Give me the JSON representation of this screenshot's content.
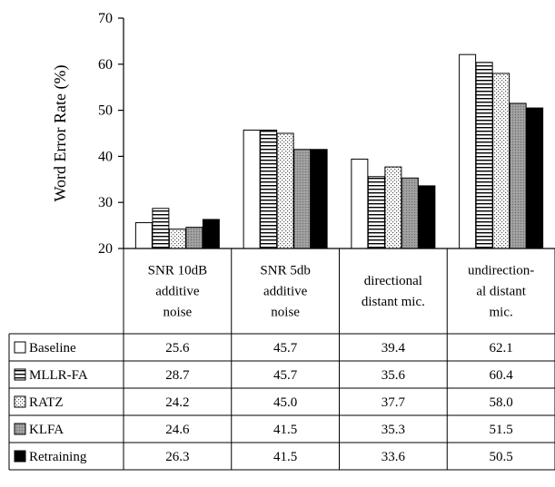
{
  "chart_data": {
    "type": "bar",
    "ylabel": "Word Error Rate (%)",
    "ylim": [
      20,
      70
    ],
    "yticks": [
      20,
      30,
      40,
      50,
      60,
      70
    ],
    "grid": false,
    "legend_placement": "left-table",
    "categories": [
      [
        "SNR 10dB",
        "additive",
        "noise"
      ],
      [
        "SNR 5db",
        "additive",
        "noise"
      ],
      [
        "directional",
        "distant mic."
      ],
      [
        "undirection-",
        "al distant",
        "mic."
      ]
    ],
    "series": [
      {
        "name": "Baseline",
        "pattern": "white",
        "values": [
          25.6,
          45.7,
          39.4,
          62.1
        ],
        "labels": [
          "25.6",
          "45.7",
          "39.4",
          "62.1"
        ]
      },
      {
        "name": "MLLR-FA",
        "pattern": "hstripe",
        "values": [
          28.7,
          45.7,
          35.6,
          60.4
        ],
        "labels": [
          "28.7",
          "45.7",
          "35.6",
          "60.4"
        ]
      },
      {
        "name": "RATZ",
        "pattern": "dots",
        "values": [
          24.2,
          45.0,
          37.7,
          58.0
        ],
        "labels": [
          "24.2",
          "45.0",
          "37.7",
          "58.0"
        ]
      },
      {
        "name": "KLFA",
        "pattern": "gray",
        "values": [
          24.6,
          41.5,
          35.3,
          51.5
        ],
        "labels": [
          "24.6",
          "41.5",
          "35.3",
          "51.5"
        ]
      },
      {
        "name": "Retraining",
        "pattern": "black",
        "values": [
          26.3,
          41.5,
          33.6,
          50.5
        ],
        "labels": [
          "26.3",
          "41.5",
          "33.6",
          "50.5"
        ]
      }
    ]
  }
}
